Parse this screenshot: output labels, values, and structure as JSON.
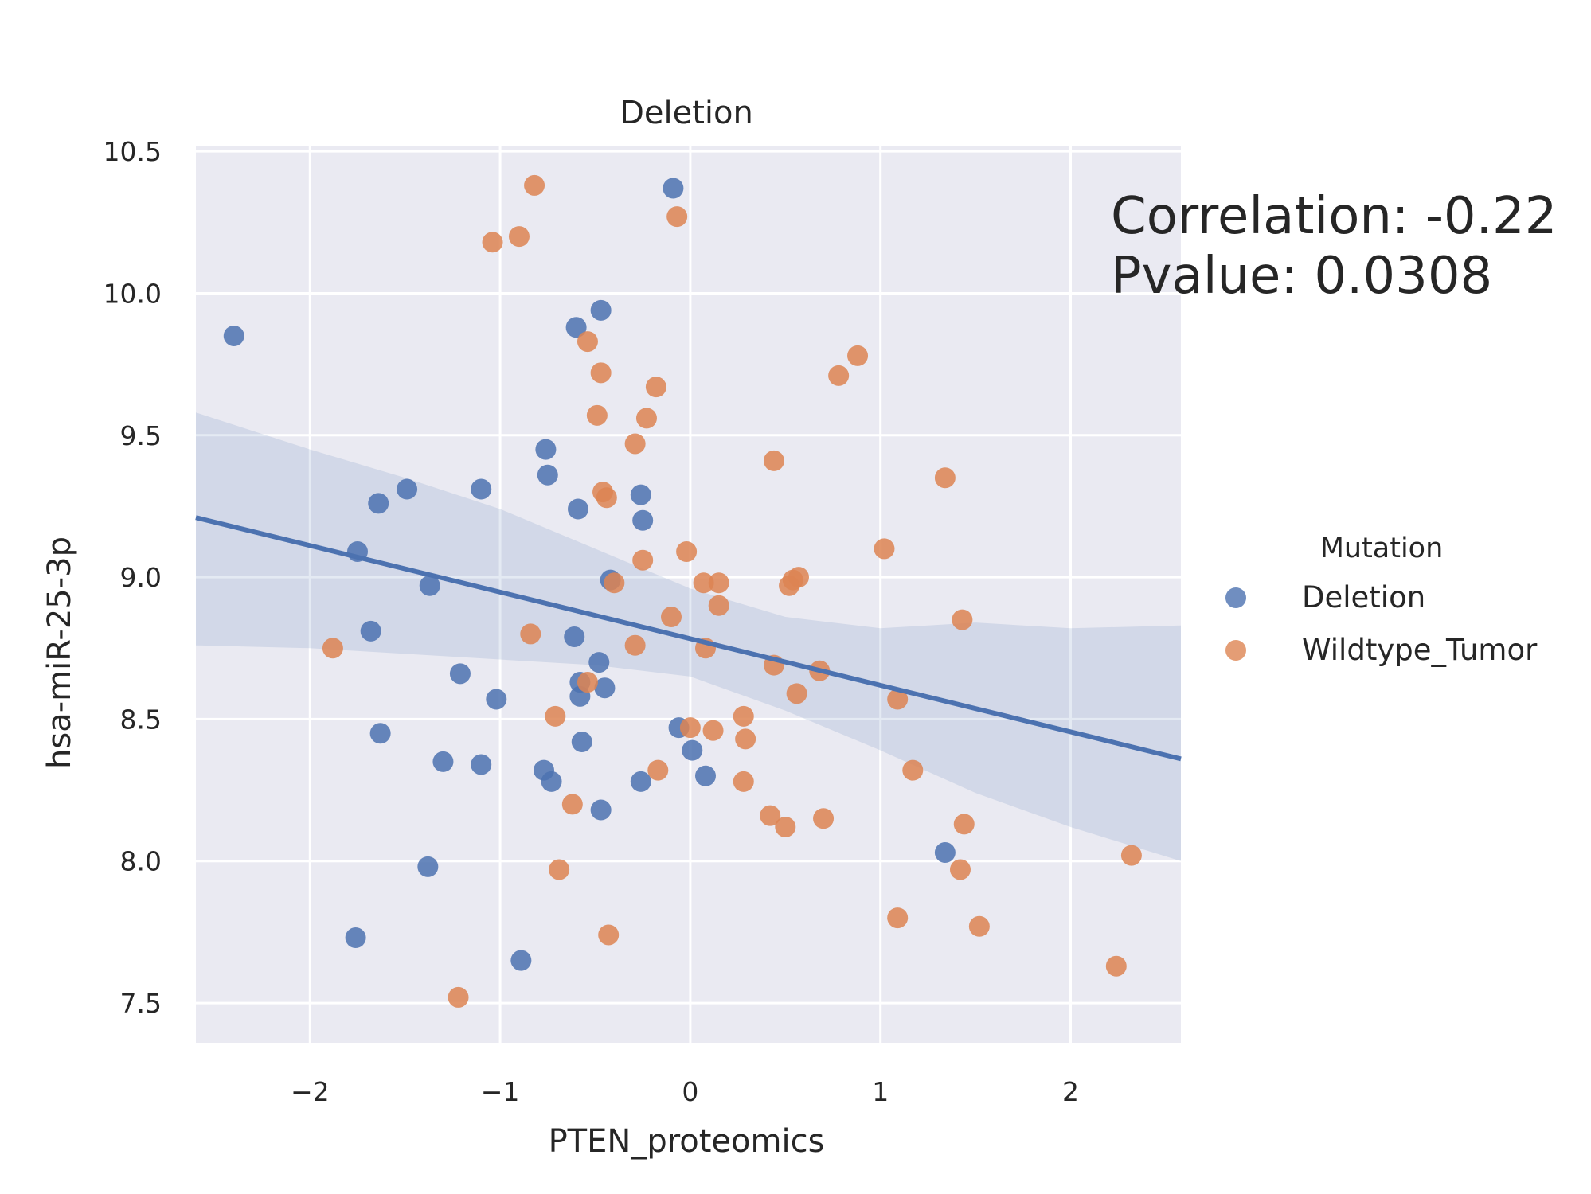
{
  "chart_data": {
    "type": "scatter",
    "title": "Deletion",
    "xlabel": "PTEN_proteomics",
    "ylabel": "hsa-miR-25-3p",
    "xlim": [
      -2.6,
      2.58
    ],
    "ylim": [
      7.36,
      10.52
    ],
    "x_ticks": [
      -2,
      -1,
      0,
      1,
      2
    ],
    "x_tick_labels": [
      "−2",
      "−1",
      "0",
      "1",
      "2"
    ],
    "y_ticks": [
      7.5,
      8.0,
      8.5,
      9.0,
      9.5,
      10.0,
      10.5
    ],
    "y_tick_labels": [
      "7.5",
      "8.0",
      "8.5",
      "9.0",
      "9.5",
      "10.0",
      "10.5"
    ],
    "grid": true,
    "background": "#eaeaf2",
    "annotation": [
      "Correlation: -0.22",
      "Pvalue: 0.0308"
    ],
    "legend": {
      "title": "Mutation",
      "position": "right"
    },
    "regression": {
      "x": [
        -2.6,
        2.58
      ],
      "y": [
        9.21,
        8.36
      ],
      "ci_upper": [
        [
          -2.6,
          9.58
        ],
        [
          -2.0,
          9.45
        ],
        [
          -1.5,
          9.35
        ],
        [
          -1.0,
          9.24
        ],
        [
          -0.5,
          9.1
        ],
        [
          0.0,
          8.96
        ],
        [
          0.5,
          8.86
        ],
        [
          1.0,
          8.82
        ],
        [
          1.5,
          8.84
        ],
        [
          2.0,
          8.82
        ],
        [
          2.58,
          8.83
        ]
      ],
      "ci_lower": [
        [
          -2.6,
          8.76
        ],
        [
          -2.0,
          8.75
        ],
        [
          -1.5,
          8.73
        ],
        [
          -1.0,
          8.71
        ],
        [
          -0.5,
          8.69
        ],
        [
          0.0,
          8.65
        ],
        [
          0.5,
          8.53
        ],
        [
          1.0,
          8.39
        ],
        [
          1.5,
          8.24
        ],
        [
          2.0,
          8.12
        ],
        [
          2.58,
          8.0
        ]
      ],
      "color": "#4c72b0"
    },
    "series": [
      {
        "name": "Deletion",
        "color": "#4c72b0",
        "points": [
          [
            -2.4,
            9.85
          ],
          [
            -1.75,
            9.09
          ],
          [
            -1.68,
            8.81
          ],
          [
            -1.64,
            9.26
          ],
          [
            -1.63,
            8.45
          ],
          [
            -1.49,
            9.31
          ],
          [
            -1.37,
            8.97
          ],
          [
            -1.3,
            8.35
          ],
          [
            -1.38,
            7.98
          ],
          [
            -1.76,
            7.73
          ],
          [
            -1.21,
            8.66
          ],
          [
            -1.1,
            9.31
          ],
          [
            -1.1,
            8.34
          ],
          [
            -1.02,
            8.57
          ],
          [
            -0.89,
            7.65
          ],
          [
            -0.76,
            9.45
          ],
          [
            -0.75,
            9.36
          ],
          [
            -0.77,
            8.32
          ],
          [
            -0.73,
            8.28
          ],
          [
            -0.6,
            9.88
          ],
          [
            -0.59,
            9.24
          ],
          [
            -0.61,
            8.79
          ],
          [
            -0.58,
            8.63
          ],
          [
            -0.58,
            8.58
          ],
          [
            -0.57,
            8.42
          ],
          [
            -0.48,
            8.7
          ],
          [
            -0.47,
            9.94
          ],
          [
            -0.47,
            8.18
          ],
          [
            -0.45,
            8.61
          ],
          [
            -0.42,
            8.99
          ],
          [
            -0.26,
            9.29
          ],
          [
            -0.25,
            9.2
          ],
          [
            -0.26,
            8.28
          ],
          [
            -0.09,
            10.37
          ],
          [
            -0.06,
            8.47
          ],
          [
            0.01,
            8.39
          ],
          [
            0.08,
            8.3
          ],
          [
            1.34,
            8.03
          ]
        ]
      },
      {
        "name": "Wildtype_Tumor",
        "color": "#dd8452",
        "points": [
          [
            -1.88,
            8.75
          ],
          [
            -1.22,
            7.52
          ],
          [
            -1.04,
            10.18
          ],
          [
            -0.9,
            10.2
          ],
          [
            -0.84,
            8.8
          ],
          [
            -0.82,
            10.38
          ],
          [
            -0.71,
            8.51
          ],
          [
            -0.69,
            7.97
          ],
          [
            -0.62,
            8.2
          ],
          [
            -0.54,
            9.83
          ],
          [
            -0.54,
            8.63
          ],
          [
            -0.49,
            9.57
          ],
          [
            -0.47,
            9.72
          ],
          [
            -0.46,
            9.3
          ],
          [
            -0.44,
            9.28
          ],
          [
            -0.43,
            7.74
          ],
          [
            -0.4,
            8.98
          ],
          [
            -0.29,
            8.76
          ],
          [
            -0.29,
            9.47
          ],
          [
            -0.25,
            9.06
          ],
          [
            -0.23,
            9.56
          ],
          [
            -0.18,
            9.67
          ],
          [
            -0.17,
            8.32
          ],
          [
            -0.1,
            8.86
          ],
          [
            -0.07,
            10.27
          ],
          [
            -0.02,
            9.09
          ],
          [
            0.0,
            8.47
          ],
          [
            0.07,
            8.98
          ],
          [
            0.08,
            8.75
          ],
          [
            0.12,
            8.46
          ],
          [
            0.15,
            8.98
          ],
          [
            0.15,
            8.9
          ],
          [
            0.28,
            8.51
          ],
          [
            0.28,
            8.28
          ],
          [
            0.29,
            8.43
          ],
          [
            0.42,
            8.16
          ],
          [
            0.44,
            9.41
          ],
          [
            0.44,
            8.69
          ],
          [
            0.5,
            8.12
          ],
          [
            0.52,
            8.97
          ],
          [
            0.54,
            8.99
          ],
          [
            0.57,
            9.0
          ],
          [
            0.56,
            8.59
          ],
          [
            0.68,
            8.67
          ],
          [
            0.7,
            8.15
          ],
          [
            0.78,
            9.71
          ],
          [
            0.88,
            9.78
          ],
          [
            1.02,
            9.1
          ],
          [
            1.09,
            8.57
          ],
          [
            1.09,
            7.8
          ],
          [
            1.17,
            8.32
          ],
          [
            1.34,
            9.35
          ],
          [
            1.42,
            7.97
          ],
          [
            1.43,
            8.85
          ],
          [
            1.44,
            8.13
          ],
          [
            1.52,
            7.77
          ],
          [
            2.24,
            7.63
          ],
          [
            2.32,
            8.02
          ]
        ]
      }
    ]
  }
}
